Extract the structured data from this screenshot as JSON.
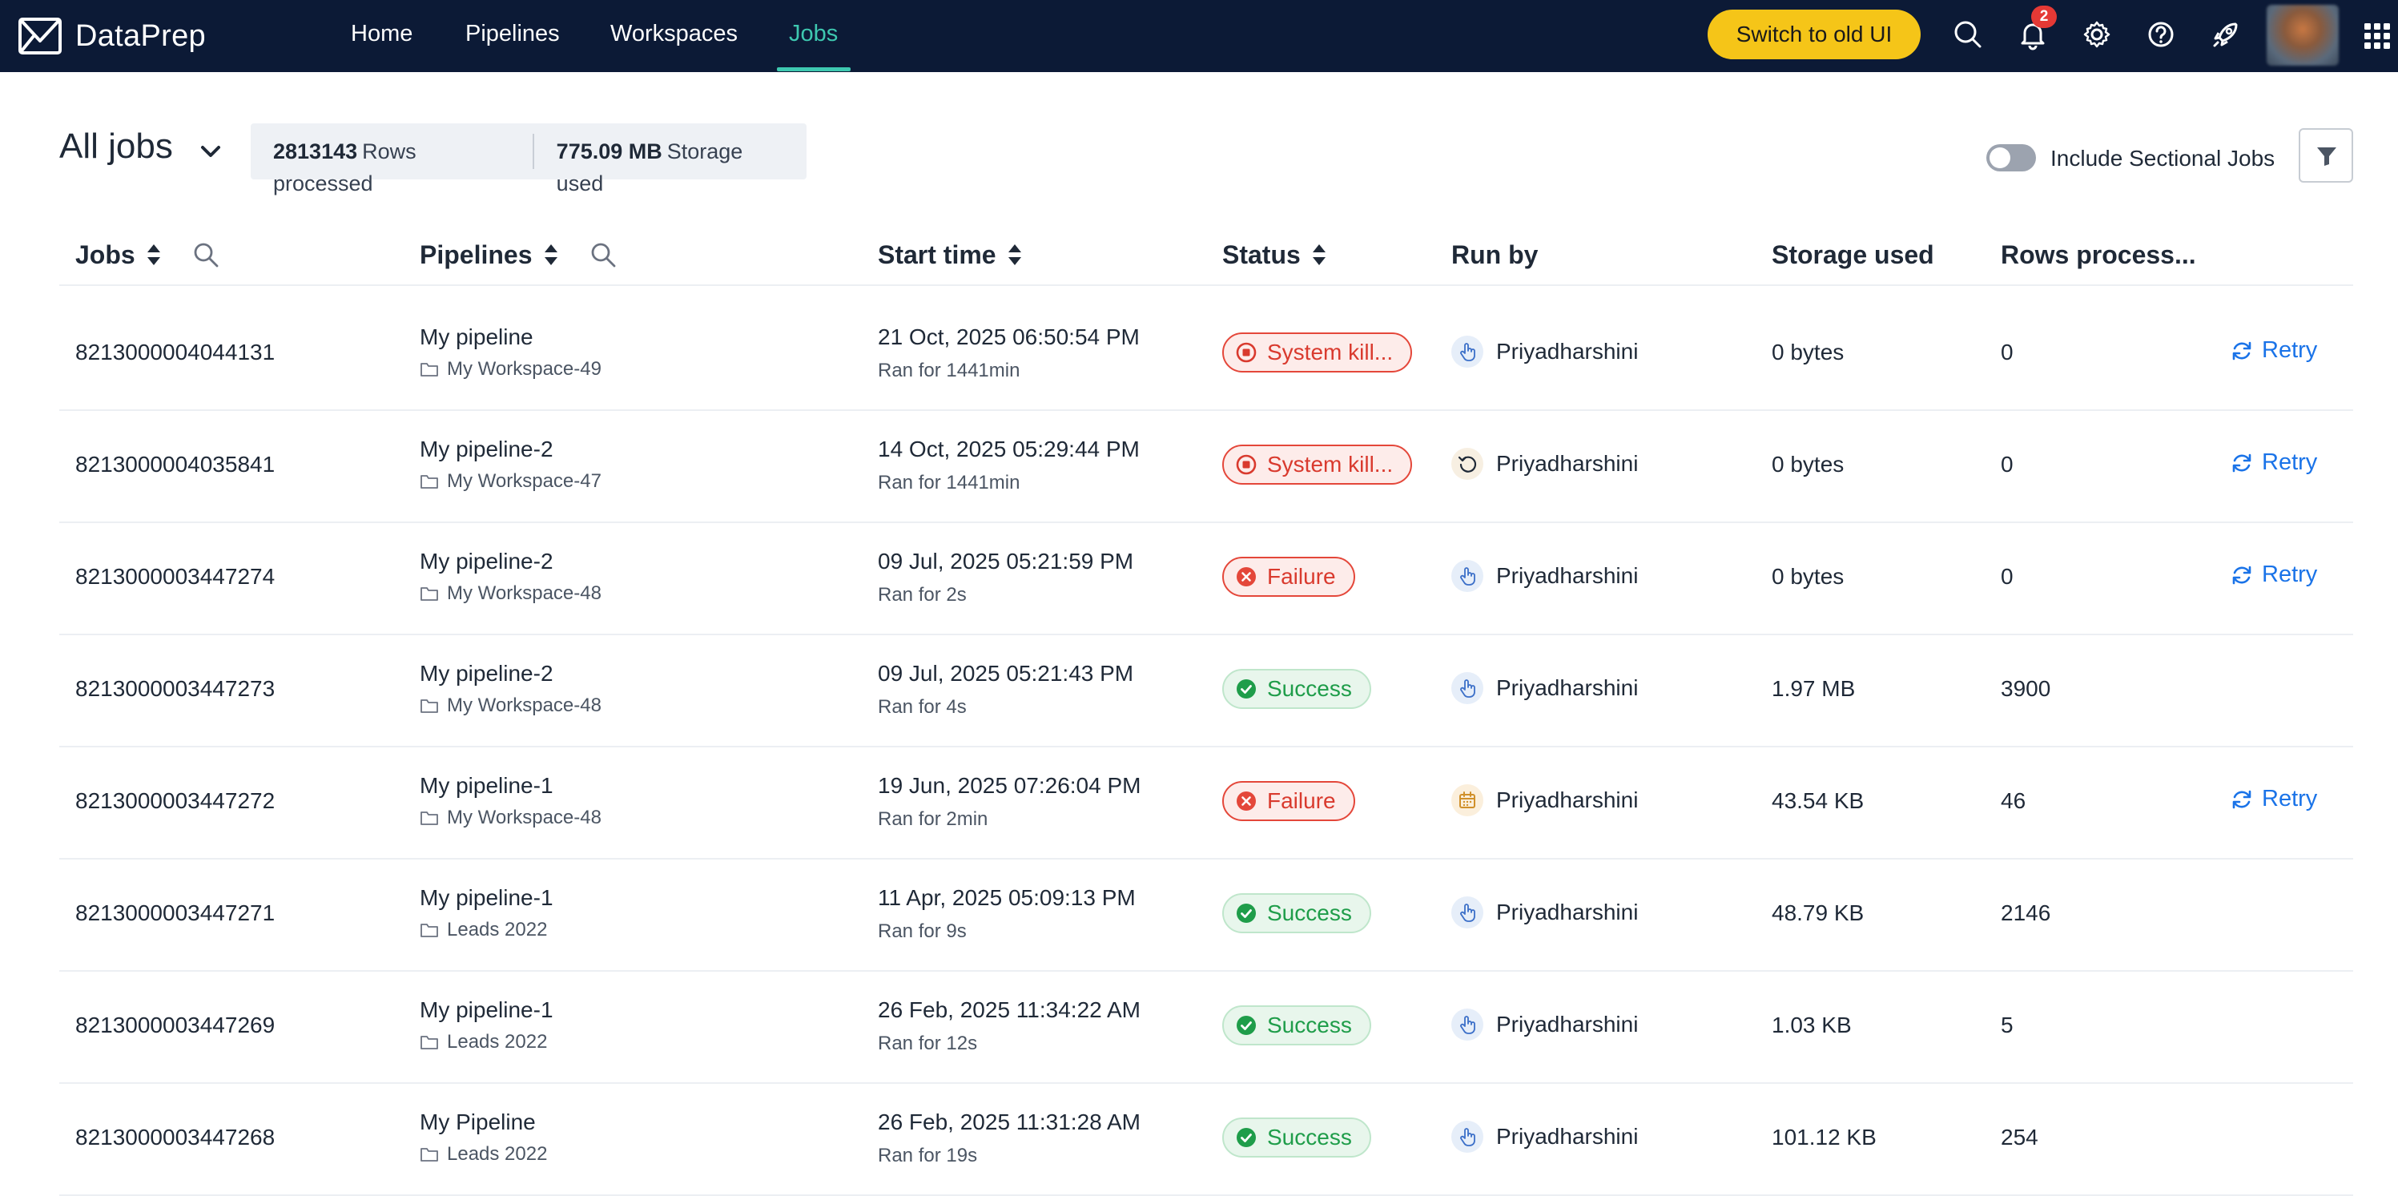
{
  "app": {
    "name": "DataPrep"
  },
  "nav": {
    "links": [
      "Home",
      "Pipelines",
      "Workspaces",
      "Jobs"
    ],
    "active": "Jobs",
    "switch_label": "Switch to old UI",
    "notification_count": "2"
  },
  "header": {
    "title": "All jobs",
    "rows_value": "2813143",
    "rows_label": "Rows processed",
    "storage_value": "775.09 MB",
    "storage_label": "Storage used",
    "toggle_label": "Include Sectional Jobs"
  },
  "columns": {
    "jobs": "Jobs",
    "pipelines": "Pipelines",
    "start_time": "Start time",
    "status": "Status",
    "run_by": "Run by",
    "storage": "Storage used",
    "rows": "Rows process..."
  },
  "rows": [
    {
      "job": "8213000004044131",
      "pipeline": "My pipeline",
      "workspace": "My Workspace-49",
      "start": "21 Oct, 2025 06:50:54 PM",
      "duration": "Ran for 1441min",
      "status": "System kill...",
      "run_by": "Priyadharshini",
      "storage": "0 bytes",
      "rows": "0",
      "retry": "Retry"
    },
    {
      "job": "8213000004035841",
      "pipeline": "My pipeline-2",
      "workspace": "My Workspace-47",
      "start": "14 Oct, 2025 05:29:44 PM",
      "duration": "Ran for 1441min",
      "status": "System kill...",
      "run_by": "Priyadharshini",
      "storage": "0 bytes",
      "rows": "0",
      "retry": "Retry"
    },
    {
      "job": "8213000003447274",
      "pipeline": "My pipeline-2",
      "workspace": "My Workspace-48",
      "start": "09 Jul, 2025 05:21:59 PM",
      "duration": "Ran for 2s",
      "status": "Failure",
      "run_by": "Priyadharshini",
      "storage": "0 bytes",
      "rows": "0",
      "retry": "Retry"
    },
    {
      "job": "8213000003447273",
      "pipeline": "My pipeline-2",
      "workspace": "My Workspace-48",
      "start": "09 Jul, 2025 05:21:43 PM",
      "duration": "Ran for 4s",
      "status": "Success",
      "run_by": "Priyadharshini",
      "storage": "1.97 MB",
      "rows": "3900"
    },
    {
      "job": "8213000003447272",
      "pipeline": "My pipeline-1",
      "workspace": "My Workspace-48",
      "start": "19 Jun, 2025 07:26:04 PM",
      "duration": "Ran for 2min",
      "status": "Failure",
      "run_by": "Priyadharshini",
      "storage": "43.54 KB",
      "rows": "46",
      "retry": "Retry"
    },
    {
      "job": "8213000003447271",
      "pipeline": "My pipeline-1",
      "workspace": "Leads 2022",
      "start": "11 Apr, 2025 05:09:13 PM",
      "duration": "Ran for 9s",
      "status": "Success",
      "run_by": "Priyadharshini",
      "storage": "48.79 KB",
      "rows": "2146"
    },
    {
      "job": "8213000003447269",
      "pipeline": "My pipeline-1",
      "workspace": "Leads 2022",
      "start": "26 Feb, 2025 11:34:22 AM",
      "duration": "Ran for 12s",
      "status": "Success",
      "run_by": "Priyadharshini",
      "storage": "1.03 KB",
      "rows": "5"
    },
    {
      "job": "8213000003447268",
      "pipeline": "My Pipeline",
      "workspace": "Leads 2022",
      "start": "26 Feb, 2025 11:31:28 AM",
      "duration": "Ran for 19s",
      "status": "Success",
      "run_by": "Priyadharshini",
      "storage": "101.12 KB",
      "rows": "254"
    }
  ]
}
